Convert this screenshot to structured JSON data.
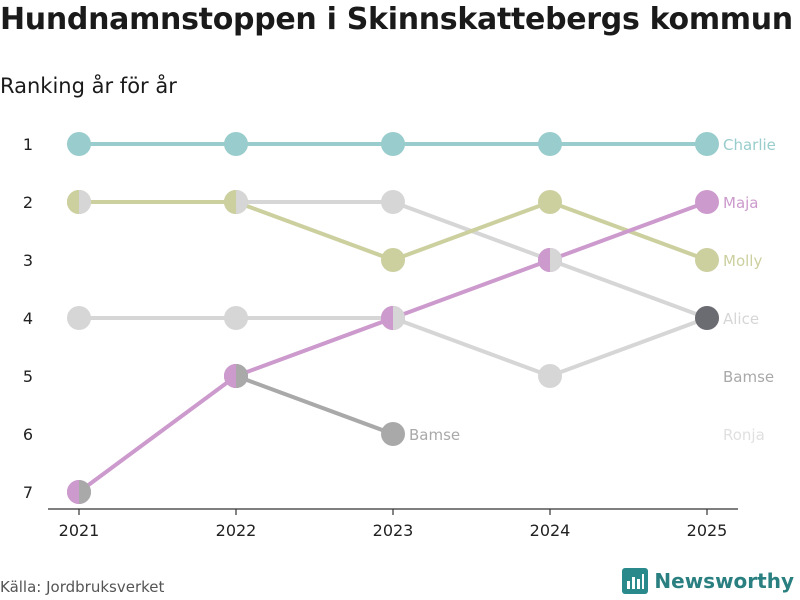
{
  "title": "Hundnamnstoppen i Skinnskattebergs kommun",
  "subtitle": "Ranking år för år",
  "source": "Källa: Jordbruksverket",
  "brand": "Newsworthy",
  "chart_data": {
    "type": "line",
    "x": [
      "2021",
      "2022",
      "2023",
      "2024",
      "2025"
    ],
    "yticks": [
      "1",
      "2",
      "3",
      "4",
      "5",
      "6",
      "7"
    ],
    "ylim": [
      1,
      7
    ],
    "series": [
      {
        "name": "Ronja",
        "color": "#e0e0e0",
        "ranks": [
          null,
          null,
          null,
          null,
          null
        ],
        "end_label": "Ronja"
      },
      {
        "name": "Alice",
        "color": "#d6d6d6",
        "ranks": [
          4,
          4,
          4,
          5,
          4
        ],
        "end_label": "Alice"
      },
      {
        "name": "Bamse",
        "color": "#a9a9a9",
        "ranks": [
          null,
          5,
          6,
          null,
          null
        ],
        "end_label": "Bamse"
      },
      {
        "name": "Bamse",
        "color": "#d6d6d6",
        "ranks": [
          2,
          2,
          2,
          3,
          4
        ],
        "end_label": null
      },
      {
        "name": "Molly",
        "color": "#cccf9e",
        "ranks": [
          2,
          2,
          3,
          2,
          3
        ],
        "end_label": "Molly"
      },
      {
        "name": "Maja",
        "color": "#cc9acd",
        "ranks": [
          7,
          5,
          4,
          3,
          2
        ],
        "end_label": "Maja"
      },
      {
        "name": "Charlie",
        "color": "#99cccc",
        "ranks": [
          1,
          1,
          1,
          1,
          1
        ],
        "end_label": "Charlie"
      }
    ],
    "annotations": [
      {
        "text": "Bamse",
        "at": "2023",
        "rank": 6,
        "color": "#a9a9a9"
      },
      {
        "text": "Bamse",
        "at": "2025",
        "rank": 5,
        "color": "#a9a9a9"
      },
      {
        "text": "Ronja",
        "at": "2025",
        "rank": 6,
        "color": "#e0e0e0"
      }
    ],
    "highlight_points": [
      {
        "at": "2025",
        "rank": 4,
        "color": "#6b6b72"
      }
    ],
    "split_points": [
      {
        "at": "2021",
        "rank": 2,
        "left": "#cccf9e",
        "right": "#d6d6d6"
      },
      {
        "at": "2022",
        "rank": 2,
        "left": "#cccf9e",
        "right": "#d6d6d6"
      },
      {
        "at": "2023",
        "rank": 4,
        "left": "#cc9acd",
        "right": "#d6d6d6"
      },
      {
        "at": "2024",
        "rank": 3,
        "left": "#cc9acd",
        "right": "#d6d6d6"
      },
      {
        "at": "2022",
        "rank": 5,
        "left": "#cc9acd",
        "right": "#a9a9a9"
      },
      {
        "at": "2021",
        "rank": 7,
        "left": "#cc9acd",
        "right": "#a9a9a9"
      }
    ]
  }
}
